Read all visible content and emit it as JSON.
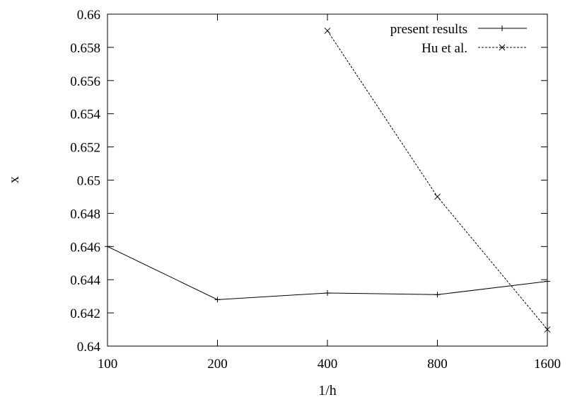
{
  "chart_data": {
    "type": "line",
    "categories": [
      "100",
      "200",
      "400",
      "800",
      "1600"
    ],
    "xlabel": "1/h",
    "ylabel": "x",
    "ylim": [
      0.64,
      0.66
    ],
    "yticks": [
      "0.64",
      "0.642",
      "0.644",
      "0.646",
      "0.648",
      "0.65",
      "0.652",
      "0.654",
      "0.656",
      "0.658",
      "0.66"
    ],
    "grid": false,
    "legend_position": "top-right",
    "series": [
      {
        "name": "present results",
        "marker": "plus",
        "line_style": "solid",
        "color": "#000000",
        "points": [
          {
            "x": "100",
            "y": 0.646
          },
          {
            "x": "200",
            "y": 0.6428
          },
          {
            "x": "400",
            "y": 0.6432
          },
          {
            "x": "800",
            "y": 0.6431
          },
          {
            "x": "1600",
            "y": 0.6439
          }
        ]
      },
      {
        "name": "Hu et al.",
        "marker": "cross",
        "line_style": "dashed",
        "color": "#000000",
        "points": [
          {
            "x": "400",
            "y": 0.659
          },
          {
            "x": "800",
            "y": 0.649
          },
          {
            "x": "1600",
            "y": 0.641
          }
        ]
      }
    ]
  }
}
